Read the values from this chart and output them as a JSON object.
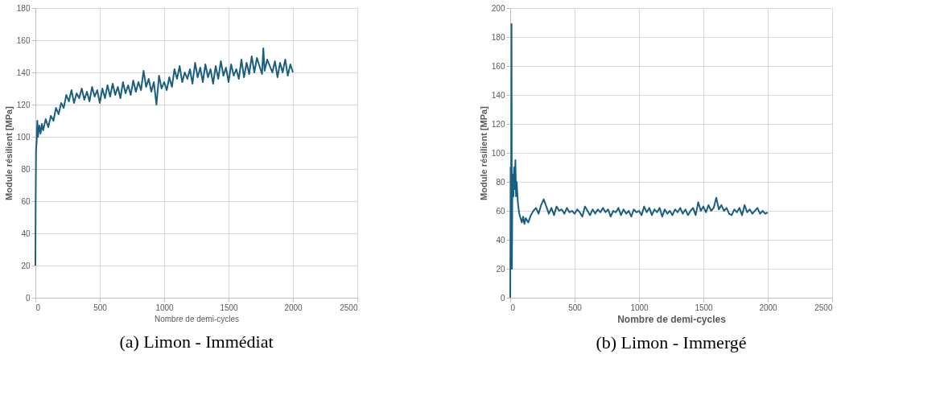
{
  "chart_data": [
    {
      "type": "line",
      "title": "(a) Limon - Immédiat",
      "xlabel": "Nombre de demi-cycles",
      "ylabel": "Module résilient [MPa]",
      "xlim": [
        0,
        2500
      ],
      "xticks": [
        0,
        500,
        1000,
        1500,
        2000,
        2500
      ],
      "ylim": [
        0,
        180
      ],
      "yticks": [
        0,
        20,
        40,
        60,
        80,
        100,
        120,
        140,
        160,
        180
      ],
      "grid": true,
      "marker": "none",
      "line_style": "solid",
      "series": [
        {
          "color": "#1a5e80",
          "x": [
            0,
            2,
            5,
            10,
            15,
            20,
            30,
            40,
            50,
            60,
            80,
            100,
            120,
            140,
            160,
            180,
            200,
            220,
            240,
            260,
            280,
            300,
            320,
            340,
            360,
            380,
            400,
            420,
            440,
            460,
            480,
            500,
            520,
            540,
            560,
            580,
            600,
            620,
            640,
            660,
            680,
            700,
            720,
            740,
            760,
            780,
            800,
            820,
            840,
            860,
            880,
            900,
            920,
            940,
            960,
            980,
            1000,
            1020,
            1040,
            1060,
            1080,
            1100,
            1120,
            1140,
            1160,
            1180,
            1200,
            1220,
            1240,
            1260,
            1280,
            1300,
            1320,
            1340,
            1360,
            1380,
            1400,
            1420,
            1440,
            1460,
            1480,
            1500,
            1520,
            1540,
            1560,
            1580,
            1600,
            1620,
            1640,
            1660,
            1680,
            1700,
            1720,
            1760,
            1770,
            1780,
            1800,
            1820,
            1840,
            1860,
            1880,
            1900,
            1920,
            1940,
            1960,
            1980,
            2000
          ],
          "values": [
            20,
            60,
            92,
            97,
            110,
            100,
            107,
            102,
            108,
            104,
            111,
            106,
            113,
            110,
            118,
            114,
            121,
            118,
            126,
            122,
            129,
            121,
            127,
            124,
            130,
            123,
            128,
            122,
            131,
            125,
            129,
            121,
            130,
            124,
            132,
            125,
            133,
            126,
            131,
            124,
            134,
            127,
            132,
            126,
            135,
            128,
            134,
            129,
            141,
            131,
            136,
            128,
            134,
            120,
            138,
            130,
            134,
            129,
            137,
            131,
            142,
            136,
            144,
            134,
            140,
            136,
            142,
            133,
            146,
            137,
            143,
            134,
            145,
            137,
            142,
            133,
            144,
            136,
            147,
            138,
            143,
            134,
            145,
            138,
            142,
            136,
            148,
            137,
            146,
            139,
            150,
            140,
            149,
            139,
            155,
            141,
            148,
            144,
            140,
            147,
            137,
            146,
            140,
            148,
            138,
            145,
            140
          ]
        }
      ]
    },
    {
      "type": "line",
      "title": "(b) Limon - Immergé",
      "xlabel": "Nombre de demi-cycles",
      "ylabel": "Module résilient [MPa]",
      "xlim": [
        0,
        2500
      ],
      "xticks": [
        0,
        500,
        1000,
        1500,
        2000,
        2500
      ],
      "ylim": [
        0,
        200
      ],
      "yticks": [
        0,
        20,
        40,
        60,
        80,
        100,
        120,
        140,
        160,
        180,
        200
      ],
      "grid": true,
      "marker": "none",
      "line_style": "solid",
      "series": [
        {
          "color": "#1a5e80",
          "x": [
            0,
            3,
            6,
            10,
            13,
            16,
            20,
            25,
            30,
            35,
            40,
            45,
            50,
            60,
            70,
            80,
            90,
            100,
            110,
            120,
            140,
            160,
            180,
            200,
            220,
            240,
            260,
            280,
            300,
            320,
            340,
            360,
            380,
            400,
            420,
            440,
            460,
            480,
            500,
            520,
            540,
            560,
            580,
            600,
            620,
            640,
            660,
            680,
            700,
            720,
            740,
            760,
            780,
            800,
            820,
            840,
            860,
            880,
            900,
            920,
            940,
            960,
            980,
            1000,
            1020,
            1040,
            1060,
            1080,
            1100,
            1120,
            1140,
            1160,
            1180,
            1200,
            1220,
            1240,
            1260,
            1280,
            1300,
            1320,
            1340,
            1360,
            1380,
            1400,
            1420,
            1440,
            1460,
            1480,
            1500,
            1520,
            1540,
            1560,
            1580,
            1600,
            1620,
            1640,
            1660,
            1680,
            1700,
            1720,
            1740,
            1760,
            1780,
            1800,
            1820,
            1840,
            1860,
            1880,
            1900,
            1920,
            1940,
            1960,
            1980,
            2000
          ],
          "values": [
            0,
            90,
            30,
            189,
            20,
            65,
            85,
            70,
            90,
            75,
            95,
            70,
            80,
            65,
            58,
            55,
            52,
            56,
            51,
            55,
            52,
            57,
            60,
            62,
            58,
            64,
            68,
            63,
            58,
            62,
            57,
            63,
            60,
            61,
            58,
            62,
            59,
            60,
            58,
            61,
            59,
            56,
            63,
            60,
            57,
            61,
            58,
            61,
            59,
            62,
            59,
            61,
            56,
            60,
            59,
            62,
            57,
            61,
            58,
            60,
            56,
            61,
            59,
            60,
            57,
            63,
            59,
            62,
            57,
            61,
            59,
            62,
            56,
            61,
            58,
            60,
            57,
            61,
            59,
            62,
            58,
            61,
            57,
            60,
            62,
            57,
            66,
            60,
            63,
            59,
            64,
            60,
            62,
            69,
            61,
            64,
            60,
            62,
            58,
            57,
            61,
            59,
            62,
            57,
            64,
            59,
            61,
            58,
            60,
            62,
            58,
            60,
            58,
            59
          ]
        }
      ]
    }
  ]
}
